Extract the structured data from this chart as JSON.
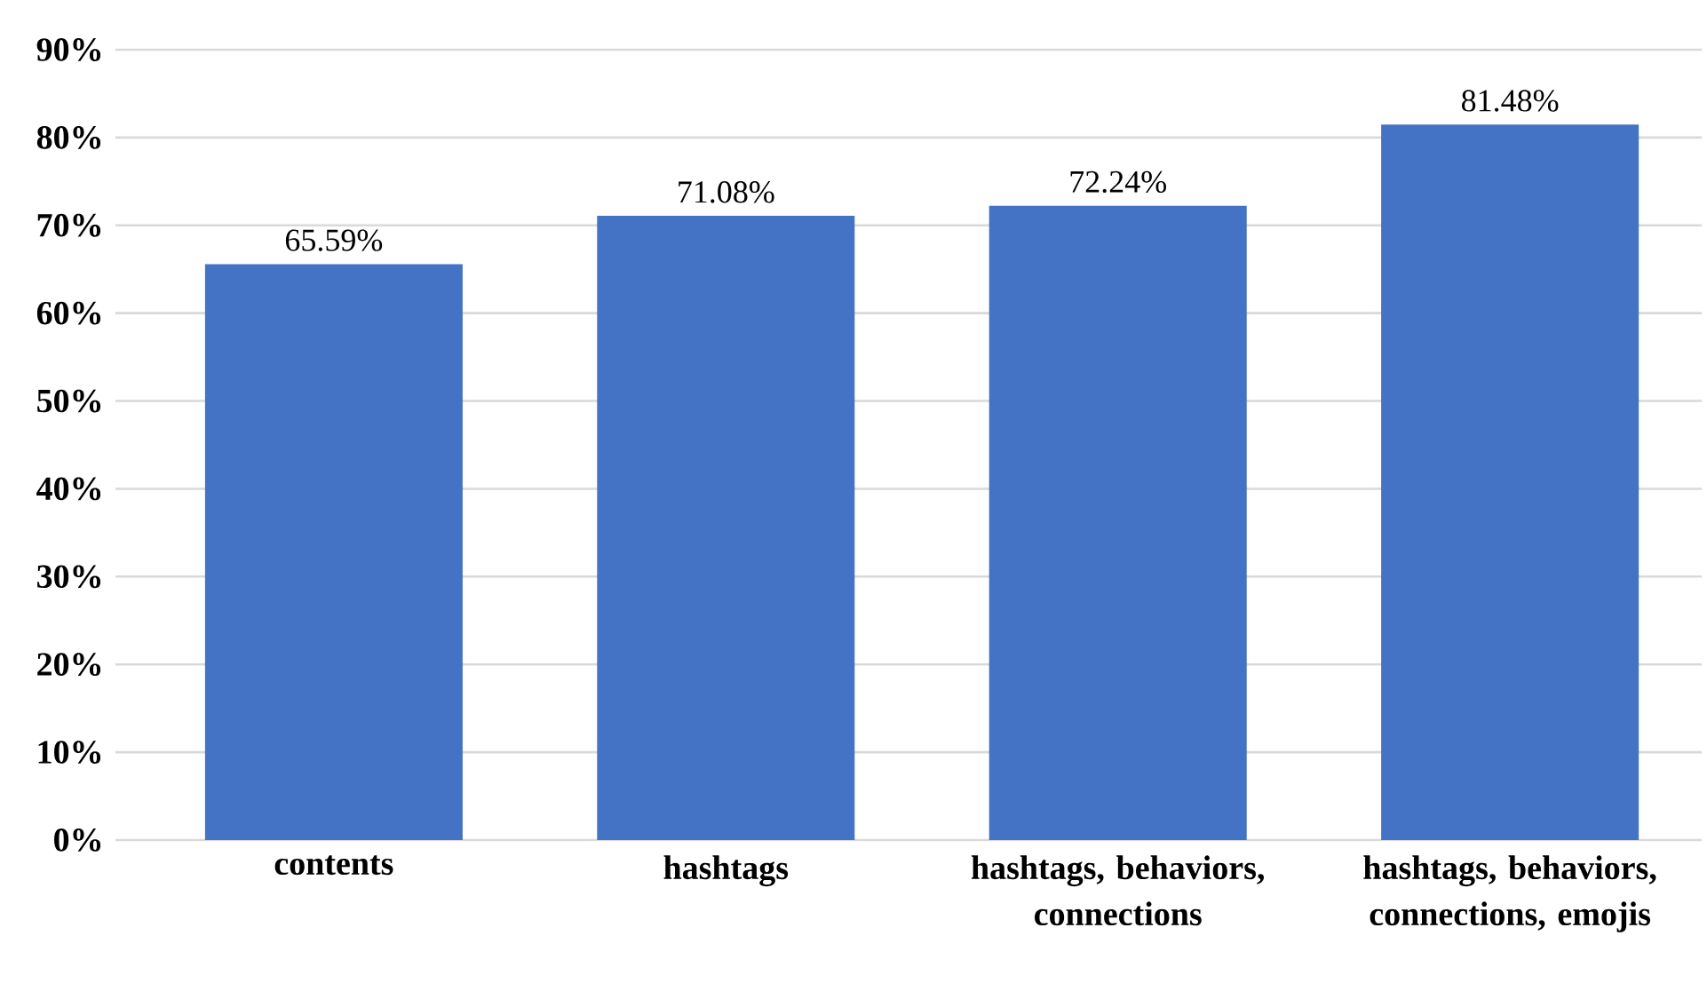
{
  "chart_data": {
    "type": "bar",
    "categories": [
      "contents",
      "hashtags",
      "hashtags, behaviors, connections",
      "hashtags, behaviors, connections, emojis"
    ],
    "values": [
      65.59,
      71.08,
      72.24,
      81.48
    ],
    "value_labels": [
      "65.59%",
      "71.08%",
      "72.24%",
      "81.48%"
    ],
    "color": "#4472c4",
    "ylim": [
      0,
      90
    ],
    "yticks": [
      {
        "value": 0,
        "label": "0%"
      },
      {
        "value": 10,
        "label": "10%"
      },
      {
        "value": 20,
        "label": "20%"
      },
      {
        "value": 30,
        "label": "30%"
      },
      {
        "value": 40,
        "label": "40%"
      },
      {
        "value": 50,
        "label": "50%"
      },
      {
        "value": 60,
        "label": "60%"
      },
      {
        "value": 70,
        "label": "70%"
      },
      {
        "value": 80,
        "label": "80%"
      },
      {
        "value": 90,
        "label": "90%"
      }
    ],
    "grid": "y"
  }
}
